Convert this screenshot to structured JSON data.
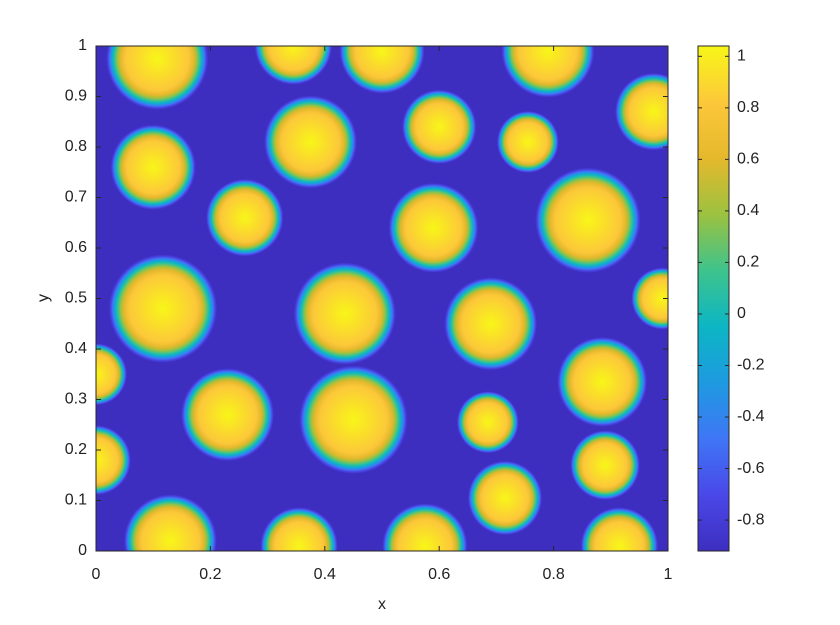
{
  "chart_data": {
    "type": "heatmap",
    "xlabel": "x",
    "ylabel": "y",
    "xlim": [
      0,
      1
    ],
    "ylim": [
      0,
      1
    ],
    "xticks": [
      0,
      0.2,
      0.4,
      0.6,
      0.8,
      1
    ],
    "yticks": [
      0,
      0.1,
      0.2,
      0.3,
      0.4,
      0.5,
      0.6,
      0.7,
      0.8,
      0.9,
      1
    ],
    "clim": [
      -0.92,
      1.04
    ],
    "cticks": [
      -0.8,
      -0.6,
      -0.4,
      -0.2,
      0,
      0.2,
      0.4,
      0.6,
      0.8,
      1
    ],
    "colormap": [
      "#3e2ec0",
      "#4a48e8",
      "#3f76f6",
      "#1e9ae0",
      "#0cb6c4",
      "#3ec38c",
      "#9cc240",
      "#e5b82c",
      "#fcc83a",
      "#f8f618"
    ],
    "blobs": [
      {
        "x": 0.107,
        "y": 0.975,
        "r": 0.066
      },
      {
        "x": 0.345,
        "y": 1.0,
        "r": 0.05
      },
      {
        "x": 0.5,
        "y": 0.99,
        "r": 0.055
      },
      {
        "x": 0.79,
        "y": 0.99,
        "r": 0.06
      },
      {
        "x": 0.975,
        "y": 0.87,
        "r": 0.05
      },
      {
        "x": 0.6,
        "y": 0.84,
        "r": 0.048
      },
      {
        "x": 0.755,
        "y": 0.81,
        "r": 0.04
      },
      {
        "x": 0.375,
        "y": 0.81,
        "r": 0.06
      },
      {
        "x": 0.1,
        "y": 0.76,
        "r": 0.055
      },
      {
        "x": 0.26,
        "y": 0.66,
        "r": 0.05
      },
      {
        "x": 0.59,
        "y": 0.64,
        "r": 0.058
      },
      {
        "x": 0.86,
        "y": 0.655,
        "r": 0.068
      },
      {
        "x": 0.117,
        "y": 0.48,
        "r": 0.07
      },
      {
        "x": 0.435,
        "y": 0.47,
        "r": 0.066
      },
      {
        "x": 0.69,
        "y": 0.45,
        "r": 0.06
      },
      {
        "x": 0.99,
        "y": 0.5,
        "r": 0.04
      },
      {
        "x": 0.0,
        "y": 0.35,
        "r": 0.04
      },
      {
        "x": 0.885,
        "y": 0.335,
        "r": 0.058
      },
      {
        "x": 0.23,
        "y": 0.27,
        "r": 0.06
      },
      {
        "x": 0.45,
        "y": 0.26,
        "r": 0.07
      },
      {
        "x": 0.685,
        "y": 0.255,
        "r": 0.04
      },
      {
        "x": 0.0,
        "y": 0.18,
        "r": 0.045
      },
      {
        "x": 0.89,
        "y": 0.17,
        "r": 0.045
      },
      {
        "x": 0.715,
        "y": 0.105,
        "r": 0.048
      },
      {
        "x": 0.13,
        "y": 0.02,
        "r": 0.06
      },
      {
        "x": 0.355,
        "y": 0.01,
        "r": 0.05
      },
      {
        "x": 0.575,
        "y": 0.01,
        "r": 0.055
      },
      {
        "x": 0.915,
        "y": 0.01,
        "r": 0.05
      }
    ]
  }
}
